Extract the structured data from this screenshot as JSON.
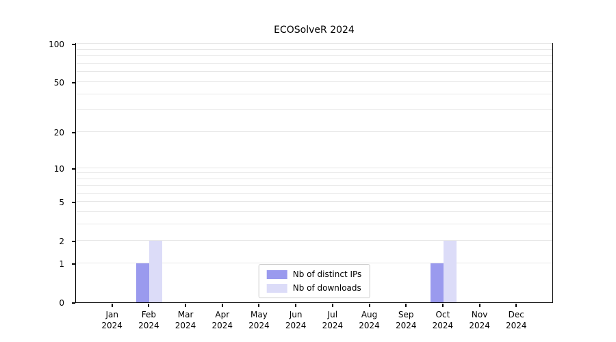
{
  "chart_data": {
    "type": "bar",
    "title": "ECOSolveR 2024",
    "categories": [
      "Jan",
      "Feb",
      "Mar",
      "Apr",
      "May",
      "Jun",
      "Jul",
      "Aug",
      "Sep",
      "Oct",
      "Nov",
      "Dec"
    ],
    "year_label": "2024",
    "series": [
      {
        "name": "Nb of distinct IPs",
        "color": "#9a9aee",
        "values": [
          0,
          1,
          0,
          0,
          0,
          0,
          0,
          0,
          0,
          1,
          0,
          0
        ]
      },
      {
        "name": "Nb of downloads",
        "color": "#dcdcf8",
        "values": [
          0,
          2,
          0,
          0,
          0,
          0,
          0,
          0,
          0,
          2,
          0,
          0
        ]
      }
    ],
    "yticks": [
      0,
      1,
      2,
      5,
      10,
      20,
      50,
      100
    ],
    "gridlines": [
      1,
      2,
      3,
      4,
      5,
      6,
      7,
      8,
      9,
      10,
      20,
      30,
      40,
      50,
      60,
      70,
      80,
      90,
      100
    ],
    "scale": "log1p",
    "ylim": [
      0,
      100
    ],
    "grid": true,
    "legend_position": "bottom-center"
  }
}
